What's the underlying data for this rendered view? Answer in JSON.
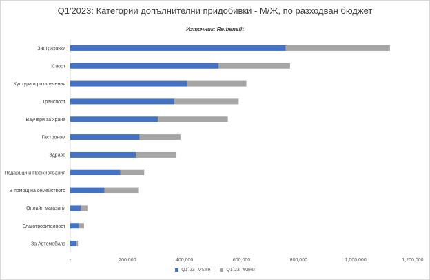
{
  "chart_data": {
    "type": "bar",
    "orientation": "horizontal",
    "stacked": true,
    "title": "Q1'2023: Категории допълнителни придобивки - М/Ж, по разходван бюджет",
    "subtitle": "Източник: Re:benefit",
    "categories": [
      "Застраховки",
      "Спорт",
      "Култура и развлечения",
      "Транспорт",
      "Ваучери за храна",
      "Гастроном",
      "Здраве",
      "Подаръци и Преживявания",
      "В помощ на семейството",
      "Онлайн магазини",
      "Благотворителност",
      "За Автомобила"
    ],
    "series": [
      {
        "name": "Q1`23_Мъже",
        "color": "#4472c4",
        "values": [
          755000,
          520000,
          410000,
          365000,
          307000,
          243000,
          230000,
          175000,
          120000,
          37000,
          30000,
          22000
        ]
      },
      {
        "name": "Q1`23_Жени",
        "color": "#a5a5a5",
        "values": [
          365000,
          250000,
          207000,
          225000,
          245000,
          143000,
          142000,
          84000,
          118000,
          23000,
          18000,
          5000
        ]
      }
    ],
    "xlim": [
      0,
      1200000
    ],
    "xticks": [
      0,
      200000,
      400000,
      600000,
      800000,
      1000000,
      1200000
    ],
    "xtick_labels": [
      "-",
      "200,000",
      "400,000",
      "600,000",
      "800,000",
      "1,000,000",
      "1,200,000"
    ],
    "grid": false,
    "legend_position": "bottom"
  }
}
